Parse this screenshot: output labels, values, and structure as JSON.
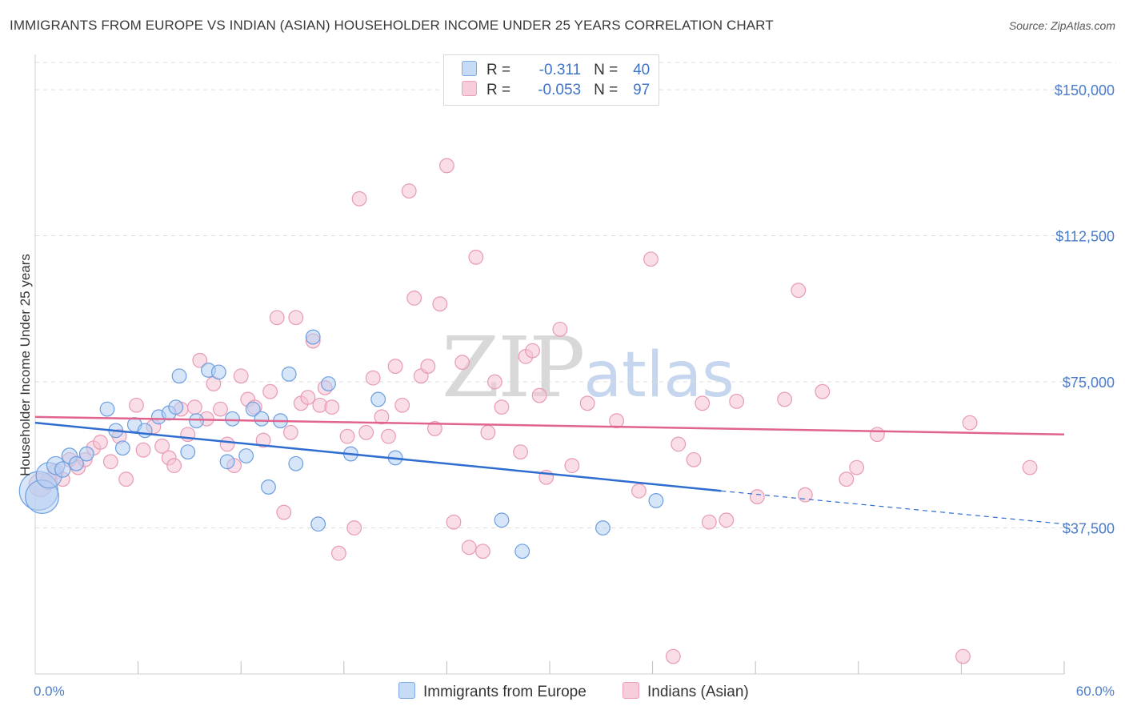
{
  "title": "IMMIGRANTS FROM EUROPE VS INDIAN (ASIAN) HOUSEHOLDER INCOME UNDER 25 YEARS CORRELATION CHART",
  "source": "Source: ZipAtlas.com",
  "watermark": {
    "zip": "ZIP",
    "atlas": "atlas"
  },
  "legend": {
    "r_label": "R =",
    "n_label": "N =",
    "rows": [
      {
        "r": "-0.311",
        "n": "40"
      },
      {
        "r": "-0.053",
        "n": "97"
      }
    ]
  },
  "colors": {
    "blue_fill": "#b6d0f2",
    "blue_stroke": "#6b9ee0",
    "blue_line": "#2f6dd0",
    "pink_fill": "#f6c3d3",
    "pink_stroke": "#e89ab4",
    "pink_line": "#e0648e",
    "grid": "#dddddd",
    "axis_text": "#4a7cc9"
  },
  "chart_data": {
    "type": "scatter",
    "title": "IMMIGRANTS FROM EUROPE VS INDIAN (ASIAN) HOUSEHOLDER INCOME UNDER 25 YEARS CORRELATION CHART",
    "xlabel": "",
    "ylabel": "Householder Income Under 25 years",
    "xlim": [
      0,
      60
    ],
    "ylim": [
      0,
      157000
    ],
    "x_tick_labels": [
      "0.0%",
      "60.0%"
    ],
    "y_ticks": [
      37500,
      75000,
      112500,
      150000
    ],
    "y_tick_labels": [
      "$37,500",
      "$75,000",
      "$112,500",
      "$150,000"
    ],
    "legend_position": "top-center",
    "series": [
      {
        "name": "Immigrants from Europe",
        "r": -0.311,
        "n": 40,
        "trend": {
          "x0": 0,
          "y0": 64500,
          "x1": 40,
          "y1": 47000,
          "dash_to_x": 60,
          "dash_to_y": 38500
        },
        "points": [
          [
            0.2,
            47000,
            3
          ],
          [
            0.4,
            45500,
            2.6
          ],
          [
            0.8,
            51000,
            2
          ],
          [
            1.2,
            53500,
            1.4
          ],
          [
            1.6,
            52500,
            1.2
          ],
          [
            2.0,
            56000,
            1.2
          ],
          [
            2.4,
            54000,
            1.1
          ],
          [
            3.0,
            56500,
            1.1
          ],
          [
            4.2,
            68000,
            1.1
          ],
          [
            4.7,
            62500,
            1.1
          ],
          [
            5.1,
            58000,
            1.1
          ],
          [
            5.8,
            64000,
            1.1
          ],
          [
            6.4,
            62500,
            1.1
          ],
          [
            7.2,
            66000,
            1.1
          ],
          [
            7.8,
            67000,
            1.1
          ],
          [
            8.2,
            68500,
            1.1
          ],
          [
            8.4,
            76500,
            1.1
          ],
          [
            8.9,
            57000,
            1.1
          ],
          [
            9.4,
            65000,
            1.1
          ],
          [
            10.1,
            78000,
            1.1
          ],
          [
            10.7,
            77500,
            1.1
          ],
          [
            11.2,
            54500,
            1.1
          ],
          [
            11.5,
            65500,
            1.1
          ],
          [
            12.3,
            56000,
            1.1
          ],
          [
            12.7,
            68000,
            1.1
          ],
          [
            13.2,
            65500,
            1.1
          ],
          [
            13.6,
            48000,
            1.1
          ],
          [
            14.3,
            65000,
            1.1
          ],
          [
            14.8,
            77000,
            1.1
          ],
          [
            15.2,
            54000,
            1.1
          ],
          [
            16.2,
            86500,
            1.1
          ],
          [
            16.5,
            38500,
            1.1
          ],
          [
            17.1,
            74500,
            1.1
          ],
          [
            18.4,
            56500,
            1.1
          ],
          [
            20.0,
            70500,
            1.1
          ],
          [
            21.0,
            55500,
            1.1
          ],
          [
            27.2,
            39500,
            1.1
          ],
          [
            28.4,
            31500,
            1.1
          ],
          [
            33.1,
            37500,
            1.1
          ],
          [
            36.2,
            44500,
            1.1
          ]
        ]
      },
      {
        "name": "Indians (Asian)",
        "r": -0.053,
        "n": 97,
        "trend": {
          "x0": 0,
          "y0": 66000,
          "x1": 60,
          "y1": 61500
        },
        "points": [
          [
            0.3,
            48500,
            1.8
          ],
          [
            0.8,
            49500,
            1.3
          ],
          [
            1.2,
            52000,
            1.2
          ],
          [
            1.6,
            50000,
            1.1
          ],
          [
            2.0,
            55000,
            1.1
          ],
          [
            2.5,
            53000,
            1.1
          ],
          [
            2.9,
            55000,
            1.1
          ],
          [
            3.4,
            58000,
            1.1
          ],
          [
            3.8,
            59500,
            1.1
          ],
          [
            4.4,
            54500,
            1.1
          ],
          [
            4.9,
            61000,
            1.1
          ],
          [
            5.3,
            50000,
            1.1
          ],
          [
            5.9,
            69000,
            1.1
          ],
          [
            6.3,
            57500,
            1.1
          ],
          [
            6.9,
            63500,
            1.1
          ],
          [
            7.4,
            58500,
            1.1
          ],
          [
            7.8,
            55500,
            1.1
          ],
          [
            8.1,
            53500,
            1.1
          ],
          [
            8.5,
            68000,
            1.1
          ],
          [
            8.9,
            61500,
            1.1
          ],
          [
            9.3,
            68500,
            1.1
          ],
          [
            9.6,
            80500,
            1.1
          ],
          [
            10.0,
            65500,
            1.1
          ],
          [
            10.4,
            74500,
            1.1
          ],
          [
            10.8,
            68000,
            1.1
          ],
          [
            11.2,
            59000,
            1.1
          ],
          [
            11.6,
            53500,
            1.1
          ],
          [
            12.0,
            76500,
            1.1
          ],
          [
            12.4,
            70500,
            1.1
          ],
          [
            12.8,
            68500,
            1.1
          ],
          [
            13.3,
            60000,
            1.1
          ],
          [
            13.7,
            72500,
            1.1
          ],
          [
            14.1,
            91500,
            1.1
          ],
          [
            14.5,
            41500,
            1.1
          ],
          [
            14.9,
            62000,
            1.1
          ],
          [
            15.2,
            91500,
            1.1
          ],
          [
            15.5,
            69500,
            1.1
          ],
          [
            15.9,
            71000,
            1.1
          ],
          [
            16.2,
            85500,
            1.1
          ],
          [
            16.6,
            69000,
            1.1
          ],
          [
            16.9,
            73500,
            1.1
          ],
          [
            17.3,
            68500,
            1.1
          ],
          [
            17.7,
            31000,
            1.1
          ],
          [
            18.2,
            61000,
            1.1
          ],
          [
            18.6,
            37500,
            1.1
          ],
          [
            18.9,
            122000,
            1.1
          ],
          [
            19.3,
            62000,
            1.1
          ],
          [
            19.7,
            76000,
            1.1
          ],
          [
            20.2,
            66000,
            1.1
          ],
          [
            20.6,
            61000,
            1.1
          ],
          [
            21.0,
            79000,
            1.1
          ],
          [
            21.4,
            69000,
            1.1
          ],
          [
            21.8,
            124000,
            1.1
          ],
          [
            22.1,
            96500,
            1.1
          ],
          [
            22.5,
            76500,
            1.1
          ],
          [
            22.9,
            79000,
            1.1
          ],
          [
            23.3,
            63000,
            1.1
          ],
          [
            23.6,
            95000,
            1.1
          ],
          [
            24.0,
            130500,
            1.1
          ],
          [
            24.4,
            39000,
            1.1
          ],
          [
            24.9,
            80000,
            1.1
          ],
          [
            25.3,
            32500,
            1.1
          ],
          [
            25.7,
            107000,
            1.1
          ],
          [
            26.1,
            31500,
            1.1
          ],
          [
            26.4,
            62000,
            1.1
          ],
          [
            26.8,
            75000,
            1.1
          ],
          [
            27.2,
            68500,
            1.1
          ],
          [
            28.3,
            57000,
            1.1
          ],
          [
            28.6,
            81500,
            1.1
          ],
          [
            29.0,
            83000,
            1.1
          ],
          [
            29.4,
            71500,
            1.1
          ],
          [
            29.8,
            50500,
            1.1
          ],
          [
            30.6,
            88500,
            1.1
          ],
          [
            31.3,
            53500,
            1.1
          ],
          [
            32.2,
            69500,
            1.1
          ],
          [
            33.9,
            65000,
            1.1
          ],
          [
            35.2,
            47000,
            1.1
          ],
          [
            35.9,
            106500,
            1.1
          ],
          [
            37.2,
            4500,
            1.1
          ],
          [
            37.5,
            59000,
            1.1
          ],
          [
            38.4,
            55000,
            1.1
          ],
          [
            38.9,
            69500,
            1.1
          ],
          [
            39.3,
            39000,
            1.1
          ],
          [
            40.3,
            39500,
            1.1
          ],
          [
            40.9,
            70000,
            1.1
          ],
          [
            42.1,
            45500,
            1.1
          ],
          [
            43.7,
            70500,
            1.1
          ],
          [
            44.5,
            98500,
            1.1
          ],
          [
            44.9,
            46000,
            1.1
          ],
          [
            45.9,
            72500,
            1.1
          ],
          [
            47.3,
            50000,
            1.1
          ],
          [
            47.9,
            53000,
            1.1
          ],
          [
            49.1,
            61500,
            1.1
          ],
          [
            54.1,
            4500,
            1.1
          ],
          [
            54.5,
            64500,
            1.1
          ],
          [
            58.0,
            53000,
            1.1
          ]
        ]
      }
    ]
  },
  "bottom_legend": [
    "Immigrants from Europe",
    "Indians (Asian)"
  ]
}
